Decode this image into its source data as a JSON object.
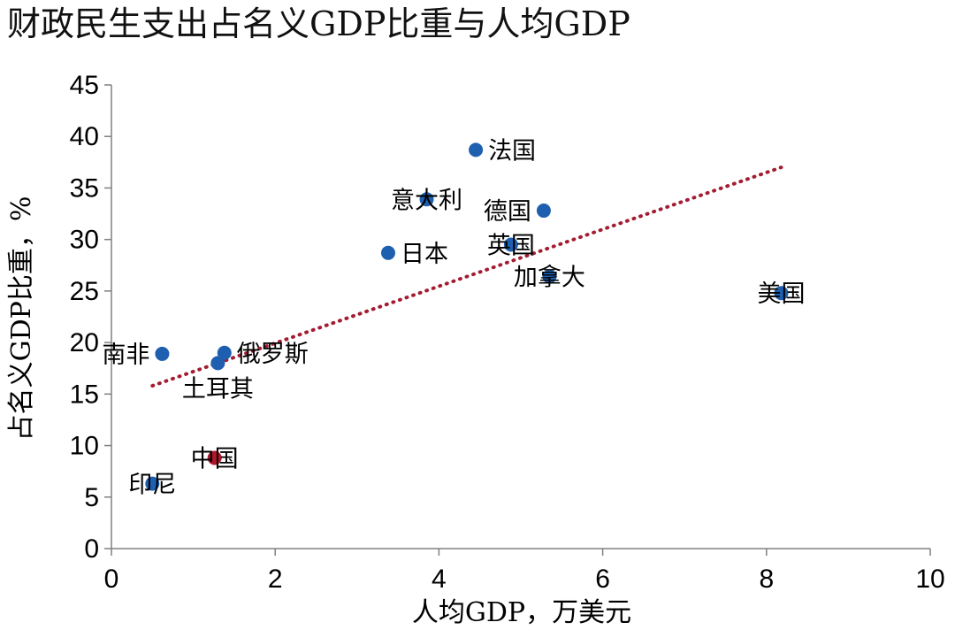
{
  "chart_data": {
    "type": "scatter",
    "title": "财政民生支出占名义GDP比重与人均GDP",
    "xlabel": "人均GDP，万美元",
    "ylabel": "占名义GDP比重，%",
    "xlim": [
      0,
      10
    ],
    "ylim": [
      0,
      45
    ],
    "xticks": [
      0,
      2,
      4,
      6,
      8,
      10
    ],
    "yticks": [
      0,
      5,
      10,
      15,
      20,
      25,
      30,
      35,
      40,
      45
    ],
    "colors": {
      "default": "#1f5fb0",
      "highlight": "#b0162b",
      "trend": "#a31c32",
      "axis": "#808080"
    },
    "points": [
      {
        "name": "法国",
        "x": 4.45,
        "y": 38.7,
        "label_pos": "right"
      },
      {
        "name": "意大利",
        "x": 3.85,
        "y": 33.9,
        "label_pos": "center"
      },
      {
        "name": "德国",
        "x": 5.28,
        "y": 32.8,
        "label_pos": "left"
      },
      {
        "name": "英国",
        "x": 4.88,
        "y": 29.5,
        "label_pos": "center"
      },
      {
        "name": "日本",
        "x": 3.38,
        "y": 28.7,
        "label_pos": "right"
      },
      {
        "name": "加拿大",
        "x": 5.35,
        "y": 26.4,
        "label_pos": "center"
      },
      {
        "name": "美国",
        "x": 8.18,
        "y": 24.8,
        "label_pos": "center"
      },
      {
        "name": "俄罗斯",
        "x": 1.38,
        "y": 19.0,
        "label_pos": "right"
      },
      {
        "name": "南非",
        "x": 0.62,
        "y": 18.9,
        "label_pos": "left"
      },
      {
        "name": "土耳其",
        "x": 1.3,
        "y": 18.0,
        "label_pos": "below"
      },
      {
        "name": "中国",
        "x": 1.26,
        "y": 8.8,
        "label_pos": "center",
        "highlight": true
      },
      {
        "name": "印尼",
        "x": 0.5,
        "y": 6.3,
        "label_pos": "center"
      }
    ],
    "trendline": {
      "type": "linear",
      "x": [
        0.5,
        8.18
      ],
      "y": [
        15.8,
        37.0
      ],
      "style": "dotted"
    }
  }
}
